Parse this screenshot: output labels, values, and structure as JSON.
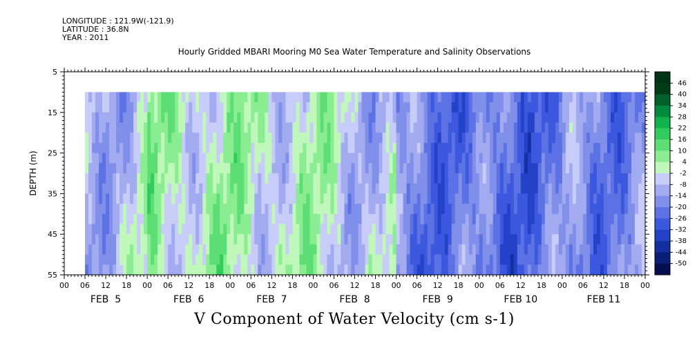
{
  "header": {
    "longitude": "LONGITUDE : 121.9W(-121.9)",
    "latitude": "LATITUDE : 36.8N",
    "year": "YEAR : 2011"
  },
  "chart_data": {
    "type": "heatmap",
    "title": "Hourly Gridded MBARI Mooring M0 Sea Water Temperature and Salinity Observations",
    "bottom_title": "V Component of Water Velocity (cm s-1)",
    "ylabel": "DEPTH (m)",
    "ylim": [
      5,
      55
    ],
    "y_reversed": true,
    "y_ticks": [
      5,
      15,
      25,
      35,
      45,
      55
    ],
    "data_depth_range": [
      10,
      55
    ],
    "x_hour_ticks": [
      "00",
      "06",
      "12",
      "18",
      "00",
      "06",
      "12",
      "18",
      "00",
      "06",
      "12",
      "18",
      "00",
      "06",
      "12",
      "18",
      "00",
      "06",
      "12",
      "18",
      "00",
      "06",
      "12",
      "18",
      "00",
      "06",
      "12",
      "18",
      "00"
    ],
    "x_day_labels": [
      "FEB  5",
      "FEB  6",
      "FEB  7",
      "FEB  8",
      "FEB  9",
      "FEB 10",
      "FEB 11"
    ],
    "data_start": "FEB 5 06:00",
    "data_end": "FEB 11 23:00",
    "colorbar": {
      "labels": [
        "46",
        "40",
        "34",
        "28",
        "22",
        "16",
        "10",
        "4",
        "-2",
        "-8",
        "-14",
        "-20",
        "-26",
        "-32",
        "-38",
        "-44",
        "-50"
      ],
      "colors": [
        "#003d16",
        "#00602a",
        "#008a3e",
        "#10b24c",
        "#32cc5e",
        "#5cde74",
        "#8aed92",
        "#c0f8bc",
        "#c8ccf8",
        "#a2aaf0",
        "#8090ea",
        "#5c72e4",
        "#3c58de",
        "#2442c8",
        "#1430a0",
        "#0a1f78",
        "#050f50"
      ]
    },
    "day_mean_v": [
      {
        "day": "FEB 5",
        "mean": -4
      },
      {
        "day": "FEB 6",
        "mean": 8
      },
      {
        "day": "FEB 7",
        "mean": 6
      },
      {
        "day": "FEB 8",
        "mean": 5
      },
      {
        "day": "FEB 9",
        "mean": -14
      },
      {
        "day": "FEB 10",
        "mean": -18
      },
      {
        "day": "FEB 11",
        "mean": -12
      }
    ]
  }
}
